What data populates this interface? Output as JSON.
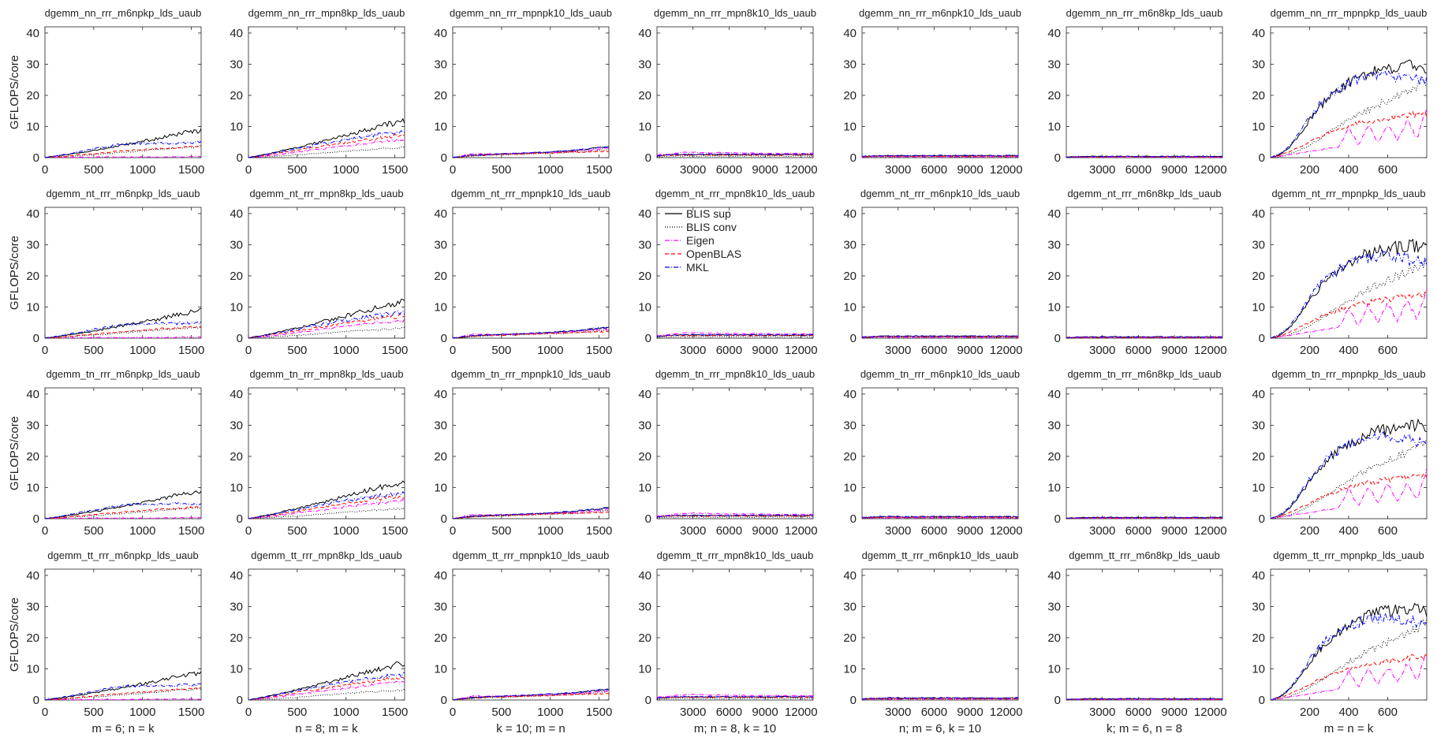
{
  "chart_data": {
    "type": "line",
    "layout": "grid 4 rows x 7 columns of small-multiple line plots",
    "ylabel": "GFLOPS/core",
    "ylim": [
      0,
      42
    ],
    "yticks": [
      0,
      10,
      20,
      30,
      40
    ],
    "series_styles": [
      {
        "name": "BLIS sup",
        "color": "#000000",
        "dash": "solid"
      },
      {
        "name": "BLIS conv",
        "color": "#000000",
        "dash": "dotted"
      },
      {
        "name": "Eigen",
        "color": "#ff00ff",
        "dash": "dashdot"
      },
      {
        "name": "OpenBLAS",
        "color": "#ff0000",
        "dash": "dashed"
      },
      {
        "name": "MKL",
        "color": "#0000ff",
        "dash": "dashdot"
      }
    ],
    "legend": {
      "location": "row 2, column 4, upper-left inside axes",
      "entries": [
        "BLIS sup",
        "BLIS conv",
        "Eigen",
        "OpenBLAS",
        "MKL"
      ]
    },
    "columns": [
      {
        "xlabel": "m = 6; n = k",
        "xlim": [
          0,
          1600
        ],
        "xticks": [
          0,
          500,
          1000,
          1500
        ],
        "tick_labels": [
          "0",
          "500",
          "1000",
          "1500"
        ]
      },
      {
        "xlabel": "n = 8; m = k",
        "xlim": [
          0,
          1600
        ],
        "xticks": [
          0,
          500,
          1000,
          1500
        ],
        "tick_labels": [
          "0",
          "500",
          "1000",
          "1500"
        ]
      },
      {
        "xlabel": "k = 10; m = n",
        "xlim": [
          0,
          1600
        ],
        "xticks": [
          0,
          500,
          1000,
          1500
        ],
        "tick_labels": [
          "0",
          "500",
          "1000",
          "1500"
        ]
      },
      {
        "xlabel": "m; n = 8, k = 10",
        "xlim": [
          0,
          13000
        ],
        "xticks": [
          3000,
          6000,
          9000,
          12000
        ],
        "tick_labels": [
          "3000",
          "6000",
          "9000",
          "12000"
        ]
      },
      {
        "xlabel": "n; m = 6, k = 10",
        "xlim": [
          0,
          13000
        ],
        "xticks": [
          3000,
          6000,
          9000,
          12000
        ],
        "tick_labels": [
          "3000",
          "6000",
          "9000",
          "12000"
        ]
      },
      {
        "xlabel": "k; m = 6, n = 8",
        "xlim": [
          0,
          13000
        ],
        "xticks": [
          3000,
          6000,
          9000,
          12000
        ],
        "tick_labels": [
          "3000",
          "6000",
          "9000",
          "12000"
        ]
      },
      {
        "xlabel": "m = n = k",
        "xlim": [
          0,
          800
        ],
        "xticks": [
          200,
          400,
          600
        ],
        "tick_labels": [
          "200",
          "400",
          "600"
        ]
      }
    ],
    "rows": [
      {
        "titles": [
          "dgemm_nn_rrr_m6npkp_lds_uaub",
          "dgemm_nn_rrr_mpn8kp_lds_uaub",
          "dgemm_nn_rrr_mpnpk10_lds_uaub",
          "dgemm_nn_rrr_mpn8k10_lds_uaub",
          "dgemm_nn_rrr_m6npk10_lds_uaub",
          "dgemm_nn_rrr_m6n8kp_lds_uaub",
          "dgemm_nn_rrr_mpnpkp_lds_uaub"
        ]
      },
      {
        "titles": [
          "dgemm_nt_rrr_m6npkp_lds_uaub",
          "dgemm_nt_rrr_mpn8kp_lds_uaub",
          "dgemm_nt_rrr_mpnpk10_lds_uaub",
          "dgemm_nt_rrr_mpn8k10_lds_uaub",
          "dgemm_nt_rrr_m6npk10_lds_uaub",
          "dgemm_nt_rrr_m6n8kp_lds_uaub",
          "dgemm_nt_rrr_mpnpkp_lds_uaub"
        ]
      },
      {
        "titles": [
          "dgemm_tn_rrr_m6npkp_lds_uaub",
          "dgemm_tn_rrr_mpn8kp_lds_uaub",
          "dgemm_tn_rrr_mpnpk10_lds_uaub",
          "dgemm_tn_rrr_mpn8k10_lds_uaub",
          "dgemm_tn_rrr_m6npk10_lds_uaub",
          "dgemm_tn_rrr_m6n8kp_lds_uaub",
          "dgemm_tn_rrr_mpnpkp_lds_uaub"
        ]
      },
      {
        "titles": [
          "dgemm_tt_rrr_m6npkp_lds_uaub",
          "dgemm_tt_rrr_mpn8kp_lds_uaub",
          "dgemm_tt_rrr_mpnpk10_lds_uaub",
          "dgemm_tt_rrr_mpn8k10_lds_uaub",
          "dgemm_tt_rrr_m6npk10_lds_uaub",
          "dgemm_tt_rrr_m6n8kp_lds_uaub",
          "dgemm_tt_rrr_mpnpkp_lds_uaub"
        ]
      }
    ],
    "column_series": [
      {
        "x": [
          0,
          200,
          400,
          600,
          800,
          1000,
          1200,
          1400,
          1600
        ],
        "series": [
          {
            "name": "BLIS sup",
            "values": [
              0,
              0.8,
              1.8,
              2.8,
              4.0,
              5.2,
              6.4,
              7.8,
              8.8
            ]
          },
          {
            "name": "BLIS conv",
            "values": [
              0,
              0.3,
              0.8,
              1.2,
              1.7,
              2.2,
              2.7,
              3.2,
              3.6
            ]
          },
          {
            "name": "Eigen",
            "values": [
              0,
              0.1,
              0.1,
              0.2,
              0.2,
              0.2,
              0.2,
              0.3,
              0.3
            ]
          },
          {
            "name": "OpenBLAS",
            "values": [
              0,
              0.4,
              1.0,
              1.6,
              2.1,
              2.6,
              3.0,
              3.4,
              3.8
            ]
          },
          {
            "name": "MKL",
            "values": [
              0,
              1.0,
              2.2,
              3.4,
              4.4,
              4.6,
              4.7,
              4.8,
              4.9
            ]
          }
        ]
      },
      {
        "x": [
          0,
          200,
          400,
          600,
          800,
          1000,
          1200,
          1400,
          1600
        ],
        "series": [
          {
            "name": "BLIS sup",
            "values": [
              0,
              1.2,
              2.6,
              4.0,
              5.6,
              7.2,
              8.8,
              10.4,
              12.0
            ]
          },
          {
            "name": "BLIS conv",
            "values": [
              0,
              0.3,
              0.7,
              1.1,
              1.6,
              2.1,
              2.5,
              2.9,
              3.3
            ]
          },
          {
            "name": "Eigen",
            "values": [
              0,
              0.6,
              1.4,
              2.2,
              3.0,
              3.8,
              4.6,
              5.2,
              5.8
            ]
          },
          {
            "name": "OpenBLAS",
            "values": [
              0,
              0.9,
              1.9,
              2.9,
              3.9,
              4.9,
              5.8,
              6.6,
              7.2
            ]
          },
          {
            "name": "MKL",
            "values": [
              0,
              1.1,
              2.3,
              3.5,
              4.7,
              5.8,
              6.8,
              7.6,
              8.2
            ]
          }
        ]
      },
      {
        "x": [
          0,
          200,
          400,
          600,
          800,
          1000,
          1200,
          1400,
          1600
        ],
        "series": [
          {
            "name": "BLIS sup",
            "values": [
              0,
              0.8,
              1.1,
              1.3,
              1.5,
              1.8,
              2.2,
              2.8,
              3.4
            ]
          },
          {
            "name": "BLIS conv",
            "values": [
              0,
              0.5,
              0.8,
              1.0,
              1.2,
              1.4,
              1.7,
              2.1,
              2.6
            ]
          },
          {
            "name": "Eigen",
            "values": [
              0,
              1.3,
              1.2,
              1.3,
              1.5,
              1.7,
              2.0,
              2.4,
              3.0
            ]
          },
          {
            "name": "OpenBLAS",
            "values": [
              0,
              0.6,
              0.9,
              1.1,
              1.3,
              1.5,
              1.7,
              1.9,
              2.1
            ]
          },
          {
            "name": "MKL",
            "values": [
              0,
              0.8,
              1.1,
              1.3,
              1.6,
              1.9,
              2.3,
              2.9,
              3.5
            ]
          }
        ]
      },
      {
        "x": [
          0,
          1000,
          2000,
          3000,
          4500,
          6000,
          7500,
          9000,
          10500,
          12000,
          13000
        ],
        "series": [
          {
            "name": "BLIS sup",
            "values": [
              0.6,
              0.9,
              1.0,
              1.0,
              1.0,
              1.0,
              1.0,
              1.0,
              1.0,
              1.0,
              1.0
            ]
          },
          {
            "name": "BLIS conv",
            "values": [
              0.3,
              0.4,
              0.5,
              0.5,
              0.5,
              0.5,
              0.5,
              0.5,
              0.5,
              0.5,
              0.5
            ]
          },
          {
            "name": "Eigen",
            "values": [
              0.8,
              1.2,
              1.6,
              1.8,
              1.6,
              1.5,
              1.5,
              1.4,
              1.4,
              1.4,
              1.4
            ]
          },
          {
            "name": "OpenBLAS",
            "values": [
              0.5,
              0.8,
              0.9,
              0.9,
              0.9,
              0.9,
              0.9,
              0.9,
              0.9,
              0.9,
              0.9
            ]
          },
          {
            "name": "MKL",
            "values": [
              0.6,
              0.9,
              1.1,
              1.1,
              1.1,
              1.1,
              1.1,
              1.1,
              1.1,
              1.1,
              1.1
            ]
          }
        ]
      },
      {
        "x": [
          0,
          1000,
          2000,
          3000,
          4500,
          6000,
          7500,
          9000,
          10500,
          12000,
          13000
        ],
        "series": [
          {
            "name": "BLIS sup",
            "values": [
              0.3,
              0.5,
              0.6,
              0.6,
              0.6,
              0.6,
              0.6,
              0.6,
              0.6,
              0.6,
              0.6
            ]
          },
          {
            "name": "BLIS conv",
            "values": [
              0.2,
              0.3,
              0.3,
              0.3,
              0.3,
              0.3,
              0.3,
              0.3,
              0.3,
              0.3,
              0.3
            ]
          },
          {
            "name": "Eigen",
            "values": [
              0.2,
              0.3,
              0.3,
              0.3,
              0.3,
              0.3,
              0.3,
              0.3,
              0.3,
              0.3,
              0.3
            ]
          },
          {
            "name": "OpenBLAS",
            "values": [
              0.3,
              0.5,
              0.5,
              0.5,
              0.5,
              0.5,
              0.5,
              0.5,
              0.5,
              0.5,
              0.5
            ]
          },
          {
            "name": "MKL",
            "values": [
              0.4,
              0.6,
              0.7,
              0.7,
              0.7,
              0.7,
              0.7,
              0.7,
              0.7,
              0.7,
              0.7
            ]
          }
        ]
      },
      {
        "x": [
          0,
          1000,
          2000,
          3000,
          4500,
          6000,
          7500,
          9000,
          10500,
          12000,
          13000
        ],
        "series": [
          {
            "name": "BLIS sup",
            "values": [
              0.2,
              0.3,
              0.4,
              0.4,
              0.4,
              0.4,
              0.4,
              0.4,
              0.4,
              0.4,
              0.4
            ]
          },
          {
            "name": "BLIS conv",
            "values": [
              0.1,
              0.2,
              0.2,
              0.2,
              0.2,
              0.2,
              0.2,
              0.2,
              0.2,
              0.2,
              0.2
            ]
          },
          {
            "name": "Eigen",
            "values": [
              0.1,
              0.1,
              0.1,
              0.1,
              0.1,
              0.1,
              0.1,
              0.1,
              0.1,
              0.1,
              0.1
            ]
          },
          {
            "name": "OpenBLAS",
            "values": [
              0.2,
              0.3,
              0.3,
              0.3,
              0.3,
              0.3,
              0.3,
              0.3,
              0.3,
              0.3,
              0.3
            ]
          },
          {
            "name": "MKL",
            "values": [
              0.2,
              0.3,
              0.4,
              0.4,
              0.4,
              0.4,
              0.4,
              0.4,
              0.4,
              0.4,
              0.4
            ]
          }
        ]
      },
      {
        "x": [
          0,
          50,
          100,
          150,
          200,
          250,
          300,
          350,
          400,
          450,
          500,
          550,
          600,
          650,
          700,
          750,
          800
        ],
        "series": [
          {
            "name": "BLIS sup",
            "values": [
              0,
              1.0,
              3.5,
              7.5,
              12.0,
              16.0,
              19.5,
              22.0,
              24.0,
              25.5,
              27.0,
              28.0,
              28.5,
              29.0,
              29.5,
              30.0,
              28.0
            ]
          },
          {
            "name": "BLIS conv",
            "values": [
              0,
              0.4,
              1.2,
              2.5,
              4.0,
              6.0,
              8.0,
              10.0,
              12.0,
              14.0,
              15.5,
              17.0,
              18.5,
              20.0,
              21.5,
              23.0,
              24.5
            ]
          },
          {
            "name": "Eigen",
            "values": [
              0,
              0.5,
              1.0,
              1.5,
              2.0,
              2.5,
              3.0,
              3.5,
              9.5,
              4.0,
              10.5,
              5.0,
              11.0,
              5.5,
              12.0,
              6.0,
              16.0
            ]
          },
          {
            "name": "OpenBLAS",
            "values": [
              0,
              0.8,
              2.0,
              3.5,
              5.0,
              6.5,
              8.0,
              9.0,
              10.0,
              11.0,
              11.5,
              12.0,
              12.5,
              13.0,
              13.5,
              14.0,
              14.0
            ]
          },
          {
            "name": "MKL",
            "values": [
              0,
              1.3,
              4.0,
              8.0,
              13.0,
              17.0,
              20.0,
              22.0,
              24.0,
              25.0,
              26.0,
              26.5,
              26.5,
              26.0,
              25.5,
              25.0,
              24.5
            ]
          }
        ]
      }
    ]
  }
}
